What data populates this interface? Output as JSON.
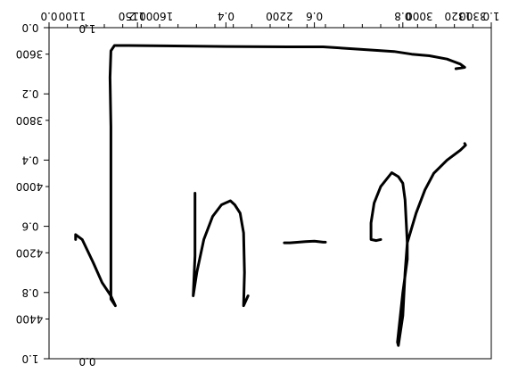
{
  "chart_data": {
    "type": "line",
    "title": "",
    "xlabel": "",
    "ylabel": "",
    "grid": false,
    "legend": "none",
    "line_color": "#000000",
    "axes": {
      "top_primary": {
        "ticks": [
          0.0,
          0.2,
          0.4,
          0.6,
          0.8,
          1.0
        ],
        "labels": [
          "0.0",
          "0.2",
          "0.4",
          "0.6",
          "0.8",
          "1.0"
        ],
        "range": [
          0,
          1
        ],
        "orientation": "mirrored"
      },
      "top_secondary": {
        "ticks": [
          1100,
          1200,
          1300,
          1400,
          1500,
          1600,
          1700,
          1800,
          1900,
          2000,
          2100,
          2200,
          2300,
          2400,
          2500,
          2600,
          2700,
          2800,
          2900,
          3000,
          3100,
          3200,
          3300
        ],
        "labels": [
          "1100",
          "1150",
          "1600",
          "2200",
          "3000",
          "3300",
          "1320"
        ],
        "range": [
          1000,
          3400
        ],
        "orientation": "mirrored"
      },
      "left_primary": {
        "ticks": [
          0.0,
          0.2,
          0.4,
          0.6,
          0.8,
          1.0
        ],
        "labels": [
          "0.0",
          "0.2",
          "0.4",
          "0.6",
          "0.8",
          "1.0"
        ],
        "range": [
          0,
          1
        ],
        "orientation": "mirrored"
      },
      "left_secondary": {
        "ticks": [
          3600,
          3800,
          4000,
          4200,
          4400
        ],
        "labels": [
          "3600",
          "3800",
          "4000",
          "4200",
          "4400"
        ],
        "range": [
          3520,
          4520
        ]
      },
      "bottom_label": "0.0",
      "top_small_label": "1.0"
    },
    "strokes": [
      {
        "name": "",
        "points": [
          [
            0.06,
            0.64
          ],
          [
            0.06,
            0.625
          ],
          [
            0.075,
            0.64
          ],
          [
            0.1,
            0.71
          ],
          [
            0.12,
            0.77
          ],
          [
            0.14,
            0.81
          ],
          [
            0.15,
            0.84
          ],
          [
            0.14,
            0.82
          ],
          [
            0.14,
            0.3
          ],
          [
            0.138,
            0.15
          ],
          [
            0.14,
            0.07
          ],
          [
            0.148,
            0.054
          ],
          [
            0.18,
            0.054
          ],
          [
            0.26,
            0.055
          ],
          [
            0.4,
            0.057
          ],
          [
            0.54,
            0.058
          ],
          [
            0.62,
            0.058
          ],
          [
            0.7,
            0.065
          ],
          [
            0.78,
            0.072
          ],
          [
            0.82,
            0.08
          ],
          [
            0.86,
            0.085
          ],
          [
            0.9,
            0.095
          ],
          [
            0.93,
            0.11
          ],
          [
            0.94,
            0.12
          ],
          [
            0.93,
            0.122
          ],
          [
            0.92,
            0.124
          ]
        ]
      },
      {
        "name": "",
        "points": [
          [
            0.33,
            0.5
          ],
          [
            0.33,
            0.51
          ],
          [
            0.33,
            0.69
          ],
          [
            0.326,
            0.81
          ],
          [
            0.334,
            0.74
          ],
          [
            0.35,
            0.64
          ],
          [
            0.37,
            0.57
          ],
          [
            0.39,
            0.535
          ],
          [
            0.41,
            0.523
          ],
          [
            0.42,
            0.535
          ],
          [
            0.432,
            0.56
          ],
          [
            0.44,
            0.62
          ],
          [
            0.442,
            0.74
          ],
          [
            0.44,
            0.84
          ],
          [
            0.45,
            0.81
          ]
        ]
      },
      {
        "name": "",
        "points": [
          [
            0.532,
            0.65
          ],
          [
            0.545,
            0.65
          ],
          [
            0.58,
            0.646
          ],
          [
            0.6,
            0.645
          ],
          [
            0.62,
            0.648
          ],
          [
            0.625,
            0.648
          ]
        ]
      },
      {
        "name": "",
        "points": [
          [
            0.75,
            0.64
          ],
          [
            0.74,
            0.643
          ],
          [
            0.728,
            0.64
          ],
          [
            0.728,
            0.59
          ],
          [
            0.735,
            0.53
          ],
          [
            0.75,
            0.48
          ],
          [
            0.775,
            0.438
          ],
          [
            0.79,
            0.45
          ],
          [
            0.8,
            0.47
          ],
          [
            0.805,
            0.52
          ],
          [
            0.81,
            0.65
          ],
          [
            0.805,
            0.74
          ],
          [
            0.8,
            0.87
          ],
          [
            0.79,
            0.96
          ],
          [
            0.788,
            0.95
          ],
          [
            0.8,
            0.8
          ],
          [
            0.81,
            0.7
          ],
          [
            0.81,
            0.65
          ],
          [
            0.83,
            0.56
          ],
          [
            0.85,
            0.49
          ],
          [
            0.87,
            0.44
          ],
          [
            0.9,
            0.4
          ],
          [
            0.93,
            0.37
          ],
          [
            0.942,
            0.355
          ],
          [
            0.94,
            0.35
          ]
        ]
      }
    ]
  }
}
